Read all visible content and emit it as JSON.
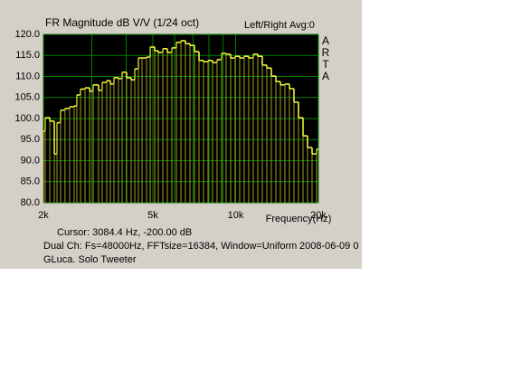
{
  "chart_data": {
    "type": "step",
    "title": "FR Magnitude dB V/V (1/24 oct)",
    "channel_label": "Left/Right",
    "average_label": "Avg:0",
    "logo_letters": [
      "A",
      "R",
      "T",
      "A"
    ],
    "x_label": "Frequency(Hz)",
    "cursor_text": "Cursor:  3084.4 Hz, -200.00 dB",
    "info_text": "Dual Ch: Fs=48000Hz, FFTsize=16384, Window=Uniform",
    "date_text": "2008-06-09  0",
    "note_text": "GLuca. Solo Tweeter",
    "x_log": true,
    "xlim": [
      2000,
      20000
    ],
    "xticks": [
      {
        "value": 2000,
        "label": "2k"
      },
      {
        "value": 5000,
        "label": "5k"
      },
      {
        "value": 10000,
        "label": "10k"
      },
      {
        "value": 20000,
        "label": "20k"
      }
    ],
    "xgrid": [
      3000,
      4000,
      6000,
      7000,
      8000,
      9000
    ],
    "ylim": [
      80,
      120
    ],
    "yticks": [
      {
        "value": 80,
        "label": "80.0"
      },
      {
        "value": 85,
        "label": "85.0"
      },
      {
        "value": 90,
        "label": "90.0"
      },
      {
        "value": 95,
        "label": "95.0"
      },
      {
        "value": 100,
        "label": "100.0"
      },
      {
        "value": 105,
        "label": "105.0"
      },
      {
        "value": 110,
        "label": "110.0"
      },
      {
        "value": 115,
        "label": "115.0"
      },
      {
        "value": 120,
        "label": "120.0"
      }
    ],
    "grid": true,
    "color": "#ffff40",
    "x": [
      2000,
      2030,
      2110,
      2191,
      2241,
      2309,
      2396,
      2491,
      2587,
      2646,
      2728,
      2834,
      2945,
      3034,
      3174,
      3272,
      3398,
      3503,
      3610,
      3750,
      3866,
      4014,
      4171,
      4299,
      4431,
      4568,
      4743,
      4891,
      5078,
      5234,
      5436,
      5646,
      5863,
      6090,
      6325,
      6568,
      6823,
      7086,
      7359,
      7642,
      7938,
      8242,
      8562,
      8892,
      9236,
      9591,
      9962,
      10345,
      10746,
      11160,
      11592,
      12038,
      12504,
      12985,
      13485,
      14008,
      14547,
      15110,
      15692,
      16300,
      16928,
      17584,
      18260,
      18967,
      19700
    ],
    "values": [
      97,
      100.2,
      99.4,
      91.6,
      99,
      102,
      102.4,
      102.8,
      103,
      105.6,
      107,
      107.3,
      106.5,
      108,
      106.7,
      108.6,
      109,
      108.2,
      109.7,
      109.5,
      111,
      109.7,
      109.2,
      111.8,
      114.4,
      114.4,
      114.6,
      117,
      116.1,
      115.7,
      116.6,
      115.7,
      116.8,
      118.1,
      118.5,
      117.8,
      117.4,
      115.9,
      113.8,
      113.5,
      113.8,
      113.3,
      114,
      115.5,
      115.3,
      114.4,
      114.8,
      114.4,
      114.8,
      114.4,
      115.3,
      114.8,
      112.7,
      112,
      110.1,
      108.8,
      108,
      108.2,
      107.1,
      103.9,
      100.2,
      95.9,
      93.1,
      91.6,
      92.7
    ]
  }
}
